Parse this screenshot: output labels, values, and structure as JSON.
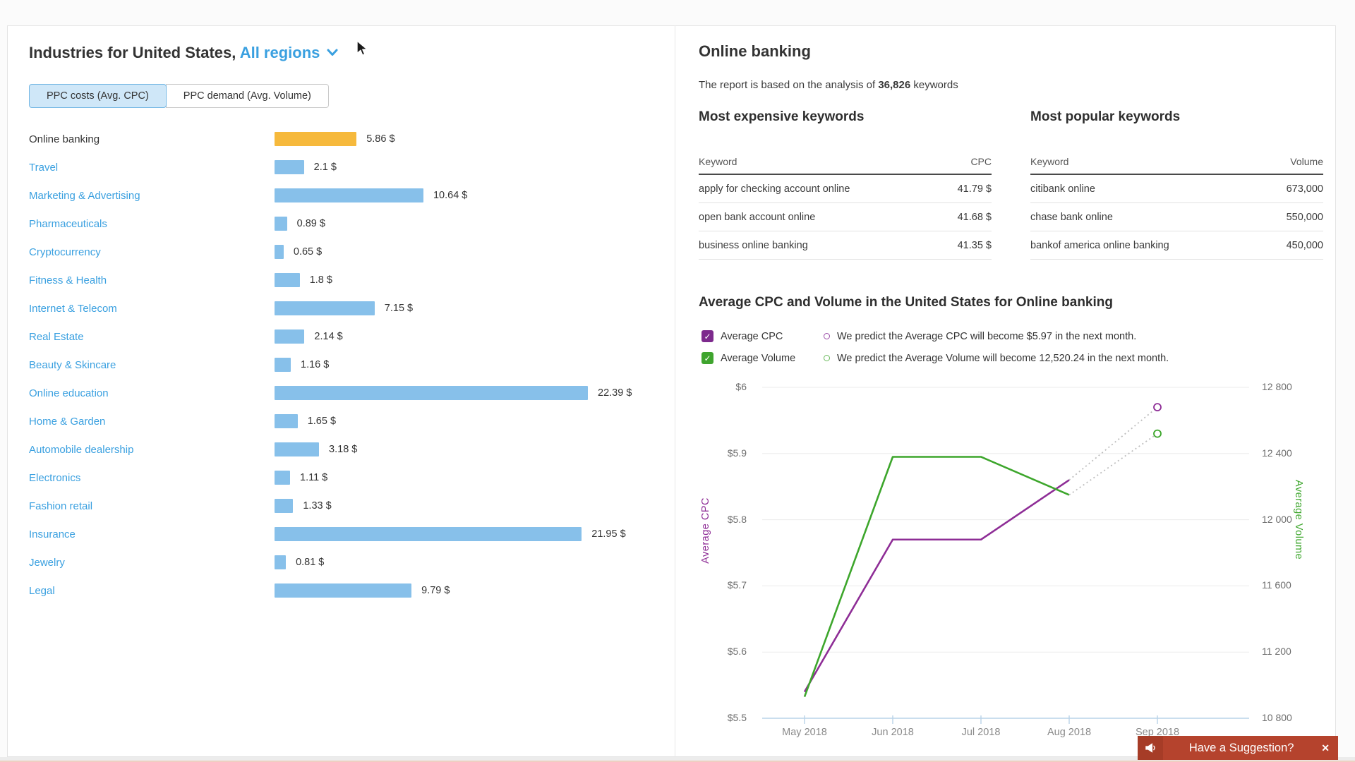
{
  "colors": {
    "accent_blue": "#3aa0e0",
    "bar_blue": "#87c0ea",
    "bar_highlight_orange": "#f6b93c",
    "cpc_purple": "#8e2d96",
    "volume_green": "#3da62c",
    "banner_red": "#b5432d",
    "gridline": "#ebebeb",
    "axis_line_blue": "#b9d3e8",
    "dotted_prediction": "#bdbdbd"
  },
  "left_panel": {
    "title": "Industries for United States,",
    "region_selector": "All regions",
    "tabs": [
      {
        "label": "PPC costs (Avg. CPC)",
        "selected": true
      },
      {
        "label": "PPC demand (Avg. Volume)",
        "selected": false
      }
    ],
    "industries": [
      {
        "name": "Online banking",
        "value": 5.86,
        "display": "5.86 $",
        "highlighted": true
      },
      {
        "name": "Travel",
        "value": 2.1,
        "display": "2.1 $"
      },
      {
        "name": "Marketing & Advertising",
        "value": 10.64,
        "display": "10.64 $"
      },
      {
        "name": "Pharmaceuticals",
        "value": 0.89,
        "display": "0.89 $"
      },
      {
        "name": "Cryptocurrency",
        "value": 0.65,
        "display": "0.65 $"
      },
      {
        "name": "Fitness & Health",
        "value": 1.8,
        "display": "1.8 $"
      },
      {
        "name": "Internet & Telecom",
        "value": 7.15,
        "display": "7.15 $"
      },
      {
        "name": "Real Estate",
        "value": 2.14,
        "display": "2.14 $"
      },
      {
        "name": "Beauty & Skincare",
        "value": 1.16,
        "display": "1.16 $"
      },
      {
        "name": "Online education",
        "value": 22.39,
        "display": "22.39 $"
      },
      {
        "name": "Home & Garden",
        "value": 1.65,
        "display": "1.65 $"
      },
      {
        "name": "Automobile dealership",
        "value": 3.18,
        "display": "3.18 $"
      },
      {
        "name": "Electronics",
        "value": 1.11,
        "display": "1.11 $"
      },
      {
        "name": "Fashion retail",
        "value": 1.33,
        "display": "1.33 $"
      },
      {
        "name": "Insurance",
        "value": 21.95,
        "display": "21.95 $"
      },
      {
        "name": "Jewelry",
        "value": 0.81,
        "display": "0.81 $"
      },
      {
        "name": "Legal",
        "value": 9.79,
        "display": "9.79 $"
      }
    ],
    "bar_scale_max": 22.39
  },
  "right_panel": {
    "title": "Online banking",
    "subtitle_prefix": "The report is based on the analysis of ",
    "subtitle_bold": "36,826",
    "subtitle_suffix": " keywords",
    "expensive": {
      "title": "Most expensive keywords",
      "col_keyword": "Keyword",
      "col_value": "CPC",
      "rows": [
        {
          "keyword": "apply for checking account online",
          "value": "41.79 $"
        },
        {
          "keyword": "open bank account online",
          "value": "41.68 $"
        },
        {
          "keyword": "business online banking",
          "value": "41.35 $"
        }
      ]
    },
    "popular": {
      "title": "Most popular keywords",
      "col_keyword": "Keyword",
      "col_value": "Volume",
      "rows": [
        {
          "keyword": "citibank online",
          "value": "673,000"
        },
        {
          "keyword": "chase bank online",
          "value": "550,000"
        },
        {
          "keyword": "bankof america online banking",
          "value": "450,000"
        }
      ]
    },
    "chart_section": {
      "title": "Average CPC and Volume in the United States for Online banking",
      "legend": [
        {
          "label": "Average CPC",
          "checked": true,
          "color": "#7d2a8d",
          "prediction": "We predict the Average CPC will become $5.97 in the next month."
        },
        {
          "label": "Average Volume",
          "checked": true,
          "color": "#3fa42e",
          "prediction": "We predict the Average Volume will become 12,520.24 in the next month."
        }
      ]
    }
  },
  "banner": {
    "label": "Have a Suggestion?",
    "close_glyph": "✕"
  },
  "chart_data": [
    {
      "type": "bar",
      "title": "Industries for United States — PPC costs (Avg. CPC)",
      "categories": [
        "Online banking",
        "Travel",
        "Marketing & Advertising",
        "Pharmaceuticals",
        "Cryptocurrency",
        "Fitness & Health",
        "Internet & Telecom",
        "Real Estate",
        "Beauty & Skincare",
        "Online education",
        "Home & Garden",
        "Automobile dealership",
        "Electronics",
        "Fashion retail",
        "Insurance",
        "Jewelry",
        "Legal"
      ],
      "values": [
        5.86,
        2.1,
        10.64,
        0.89,
        0.65,
        1.8,
        7.15,
        2.14,
        1.16,
        22.39,
        1.65,
        3.18,
        1.11,
        1.33,
        21.95,
        0.81,
        9.79
      ],
      "unit": "$",
      "highlighted_category": "Online banking"
    },
    {
      "type": "line",
      "title": "Average CPC and Volume in the United States for Online banking",
      "x": [
        "May 2018",
        "Jun 2018",
        "Jul 2018",
        "Aug 2018",
        "Sep 2018"
      ],
      "series": [
        {
          "name": "Average CPC",
          "axis": "left",
          "color": "#8e2d96",
          "values": [
            5.54,
            5.77,
            5.77,
            5.86,
            null
          ],
          "prediction": {
            "x": "Sep 2018",
            "value": 5.97
          }
        },
        {
          "name": "Average Volume",
          "axis": "right",
          "color": "#3da62c",
          "values": [
            10930,
            12380,
            12380,
            12150,
            null
          ],
          "prediction": {
            "x": "Sep 2018",
            "value": 12520.24
          }
        }
      ],
      "left_axis": {
        "label": "Average CPC",
        "ticks": [
          "$6",
          "$5.9",
          "$5.8",
          "$5.7",
          "$5.6",
          "$5.5"
        ],
        "range": [
          5.5,
          6.0
        ]
      },
      "right_axis": {
        "label": "Average Volume",
        "ticks": [
          "12 800",
          "12 400",
          "12 000",
          "11 600",
          "11 200",
          "10 800"
        ],
        "range": [
          10800,
          12800
        ]
      },
      "grid": true,
      "legend_position": "top-left"
    }
  ]
}
